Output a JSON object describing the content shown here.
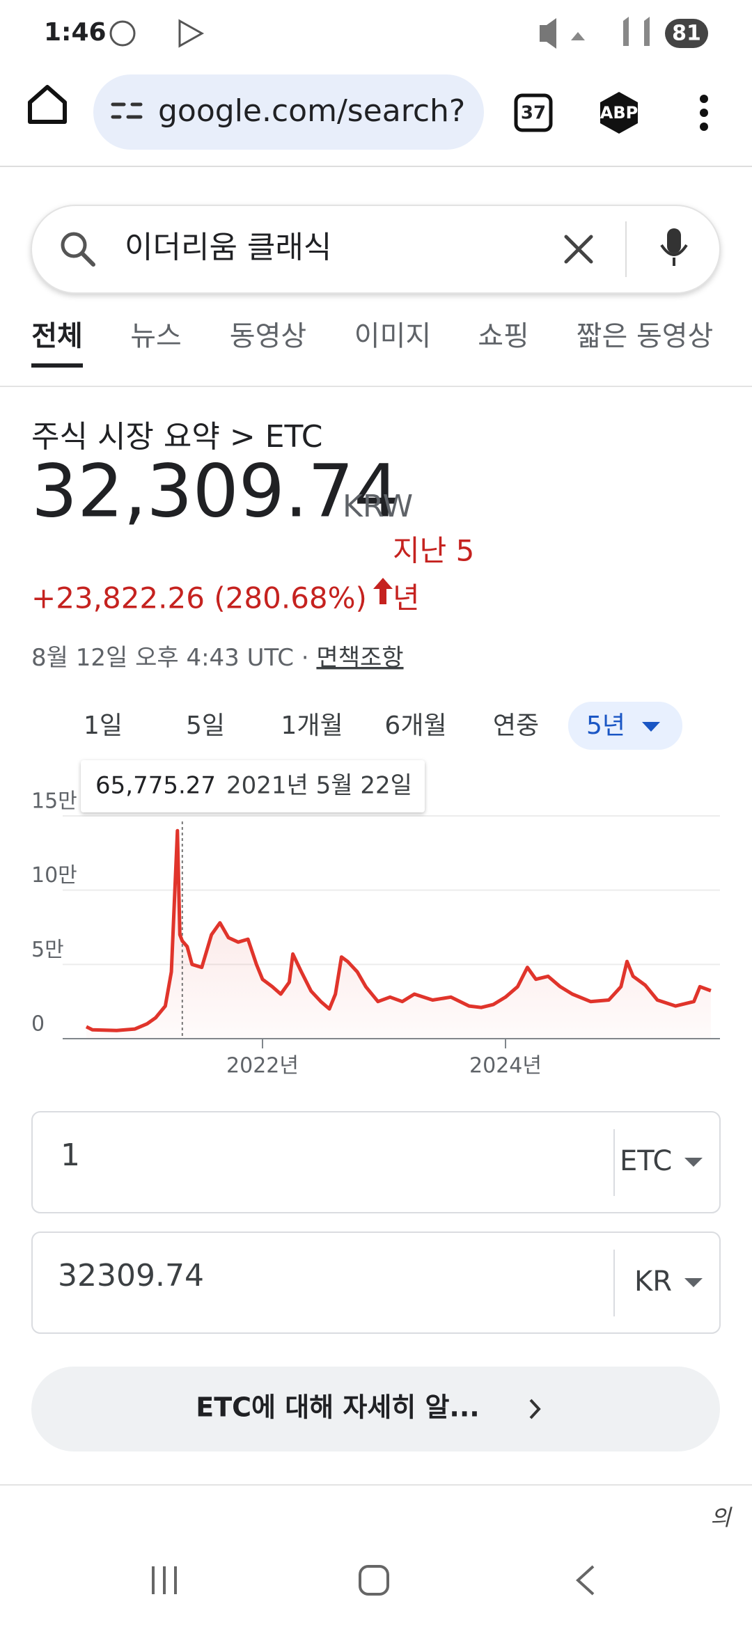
{
  "status_bar": {
    "time": "1:46",
    "battery": "81"
  },
  "browser": {
    "url": "google.com/search?",
    "tab_count": "37",
    "extension": "ABP"
  },
  "search": {
    "query": "이더리움 클래식"
  },
  "tabs": [
    "전체",
    "뉴스",
    "동영상",
    "이미지",
    "쇼핑",
    "짧은 동영상"
  ],
  "summary": {
    "breadcrumb": "주식 시장 요약 > ETC",
    "price": "32,309.74",
    "currency": "KRW",
    "change": "+23,822.26 (280.68%)",
    "period": [
      "지난 5",
      "년"
    ],
    "timestamp": "8월 12일 오후 4:43 UTC · ",
    "disclaimer": "면책조항"
  },
  "ranges": [
    "1일",
    "5일",
    "1개월",
    "6개월",
    "연중",
    "5년"
  ],
  "tooltip": {
    "value": "65,775.27",
    "date": "2021년 5월 22일"
  },
  "chart_data": {
    "type": "line",
    "x": [
      2020.55,
      2020.6,
      2020.8,
      2020.95,
      2021.05,
      2021.12,
      2021.2,
      2021.25,
      2021.3,
      2021.32,
      2021.34,
      2021.38,
      2021.42,
      2021.5,
      2021.58,
      2021.65,
      2021.72,
      2021.8,
      2021.88,
      2021.95,
      2022.0,
      2022.08,
      2022.15,
      2022.22,
      2022.25,
      2022.32,
      2022.4,
      2022.48,
      2022.55,
      2022.6,
      2022.65,
      2022.7,
      2022.78,
      2022.85,
      2022.95,
      2023.05,
      2023.15,
      2023.25,
      2023.4,
      2023.55,
      2023.7,
      2023.8,
      2023.9,
      2024.0,
      2024.1,
      2024.18,
      2024.25,
      2024.35,
      2024.45,
      2024.55,
      2024.7,
      2024.85,
      2024.95,
      2025.0,
      2025.05,
      2025.15,
      2025.25,
      2025.4,
      2025.55,
      2025.6,
      2025.69
    ],
    "series": [
      {
        "color": "#e0342b",
        "values": [
          8000,
          6000,
          5500,
          6500,
          10000,
          14000,
          22000,
          45000,
          140000,
          70000,
          65775.27,
          62000,
          50000,
          48000,
          70000,
          78000,
          68000,
          65000,
          67000,
          50000,
          40000,
          35000,
          30000,
          38000,
          57000,
          45000,
          32000,
          25000,
          20000,
          30000,
          55000,
          52000,
          45000,
          35000,
          25000,
          28000,
          25000,
          30000,
          26000,
          28000,
          22000,
          21000,
          23000,
          28000,
          35000,
          48000,
          40000,
          42000,
          35000,
          30000,
          25000,
          26000,
          35000,
          52000,
          42000,
          36000,
          26000,
          22000,
          25000,
          35000,
          32309.74
        ]
      }
    ],
    "ylim": [
      0,
      150000
    ],
    "yticks": [
      0,
      {
        "value": 50000,
        "label": "5만"
      },
      {
        "value": 100000,
        "label": "10만"
      },
      {
        "value": 150000,
        "label": "15만"
      }
    ],
    "xticks": [
      {
        "value": 2022,
        "label": "2022년"
      },
      {
        "value": 2024,
        "label": "2024년"
      }
    ],
    "grid": true
  },
  "converter": {
    "from_amount": "1",
    "from_unit": "ETC",
    "to_amount": "32309.74",
    "to_unit": "KR"
  },
  "learn_more": "ETC에 대해 자세히 알...",
  "footer": "의"
}
